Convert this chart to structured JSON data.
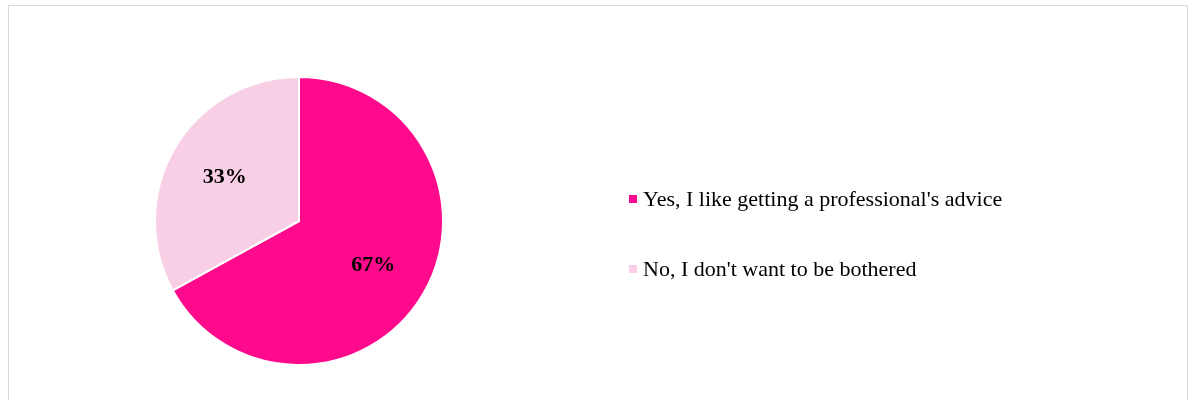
{
  "chart_data": {
    "type": "pie",
    "categories": [
      "Yes, I like getting a professional's advice",
      "No, I don't want to be bothered"
    ],
    "values": [
      67,
      33
    ],
    "colors": [
      "#ff0a8c",
      "#f8cfe4"
    ],
    "value_labels": [
      "67%",
      "33%"
    ],
    "legend": "right"
  }
}
